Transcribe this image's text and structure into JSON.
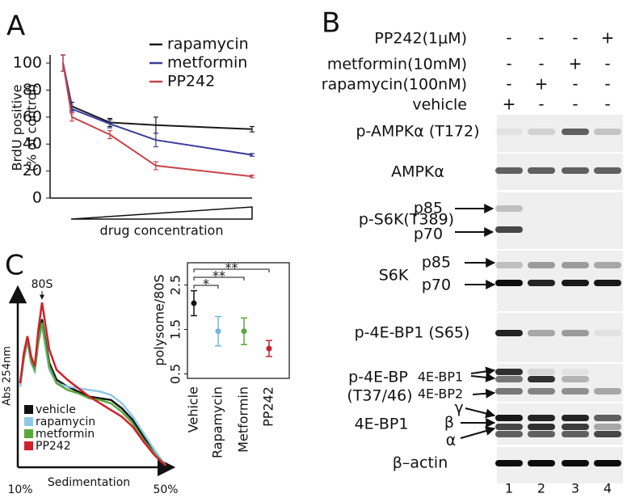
{
  "panel_labels": [
    "A",
    "B",
    "C"
  ],
  "chart_data": [
    {
      "type": "line",
      "y_label": [
        "BrdU positive",
        "(% of control)"
      ],
      "x_label": "drug concentration",
      "categories": [
        null,
        null,
        null,
        null,
        null
      ],
      "ylim": [
        0,
        106
      ],
      "yticks": [
        0,
        20,
        40,
        60,
        80,
        100
      ],
      "legend": "upper right",
      "series": [
        {
          "name": "rapamycin",
          "color": "#1a1a1a",
          "values": [
            100,
            68,
            56,
            54,
            51
          ],
          "errors": [
            6,
            3,
            3,
            6,
            2
          ]
        },
        {
          "name": "metformin",
          "color": "#3b3b9c",
          "values": [
            100,
            66,
            55,
            43,
            32
          ],
          "errors": [
            6,
            2,
            3,
            5,
            1
          ]
        },
        {
          "name": "PP242",
          "color": "#c8434a",
          "values": [
            100,
            60,
            47,
            24,
            16
          ],
          "errors": [
            6,
            3,
            3,
            3,
            1
          ]
        }
      ]
    },
    {
      "type": "line",
      "y_label": "Abs 254nm",
      "x_label": "Sedimentation",
      "x": [
        10,
        11,
        12,
        13,
        14,
        15,
        16,
        18,
        20,
        23,
        26,
        29,
        32,
        35,
        38,
        41,
        44,
        47,
        50
      ],
      "xlim": [
        10,
        50
      ],
      "xticks": [
        {
          "value": 10,
          "label": "10%"
        },
        {
          "value": 50,
          "label": "50%"
        }
      ],
      "ylim": [
        0,
        100
      ],
      "annotation": {
        "text": "80S",
        "x": 16
      },
      "legend": "lower left",
      "series": [
        {
          "name": "vehicle",
          "color": "#111111",
          "values": [
            50,
            66,
            77,
            64,
            59,
            76,
            88,
            62,
            52,
            48,
            45,
            42,
            41,
            40,
            35,
            28,
            18,
            9,
            1
          ]
        },
        {
          "name": "rapamycin",
          "color": "#8ec8e8",
          "values": [
            48,
            64,
            75,
            62,
            57,
            74,
            84,
            58,
            50,
            48,
            47,
            46,
            45,
            43,
            38,
            30,
            20,
            10,
            1
          ]
        },
        {
          "name": "metformin",
          "color": "#5aa83c",
          "values": [
            50,
            65,
            76,
            63,
            58,
            75,
            86,
            60,
            50,
            46,
            44,
            41,
            40,
            38,
            33,
            26,
            16,
            8,
            1
          ]
        },
        {
          "name": "PP242",
          "color": "#d0202a",
          "values": [
            50,
            68,
            78,
            66,
            60,
            82,
            98,
            70,
            58,
            52,
            47,
            42,
            38,
            34,
            30,
            24,
            15,
            7,
            1
          ]
        }
      ]
    },
    {
      "type": "dot",
      "y_label": "polysome/80S",
      "categories": [
        "Vehicle",
        "Rapamycin",
        "Metformin",
        "PP242"
      ],
      "values": [
        2.09,
        1.46,
        1.46,
        1.07
      ],
      "errors": [
        0.28,
        0.33,
        0.3,
        0.18
      ],
      "colors": [
        "#111111",
        "#6fb7df",
        "#5aa83c",
        "#c0282f"
      ],
      "ylim": [
        0.4,
        3.0
      ],
      "yticks": [
        0.5,
        1.5,
        2.5
      ],
      "annotations": [
        "*",
        "**",
        "**"
      ]
    }
  ],
  "blot": {
    "treatments": [
      {
        "label": "PP242(1μM)",
        "signs": [
          "-",
          "-",
          "-",
          "+"
        ]
      },
      {
        "label": "metformin(10mM)",
        "signs": [
          "-",
          "-",
          "+",
          "-"
        ]
      },
      {
        "label": "rapamycin(100nM)",
        "signs": [
          "-",
          "+",
          "-",
          "-"
        ]
      },
      {
        "label": "vehicle",
        "signs": [
          "+",
          "-",
          "-",
          "-"
        ]
      }
    ],
    "rows": [
      {
        "label": "p-AMPKα (T172)"
      },
      {
        "label": "AMPKα"
      },
      {
        "label": "p-S6K(T389)",
        "bands": [
          "p85",
          "p70"
        ]
      },
      {
        "label": "S6K",
        "bands": [
          "p85",
          "p70"
        ]
      },
      {
        "label": "p-4E-BP1 (S65)"
      },
      {
        "label": "p-4E-BP",
        "label2": "(T37/46)",
        "bands": [
          "4E-BP1",
          "4E-BP2"
        ]
      },
      {
        "label": "4E-BP1",
        "bands": [
          "γ",
          "β",
          "α"
        ]
      },
      {
        "label": "β–actin"
      }
    ],
    "lanes": [
      "1",
      "2",
      "3",
      "4"
    ]
  }
}
